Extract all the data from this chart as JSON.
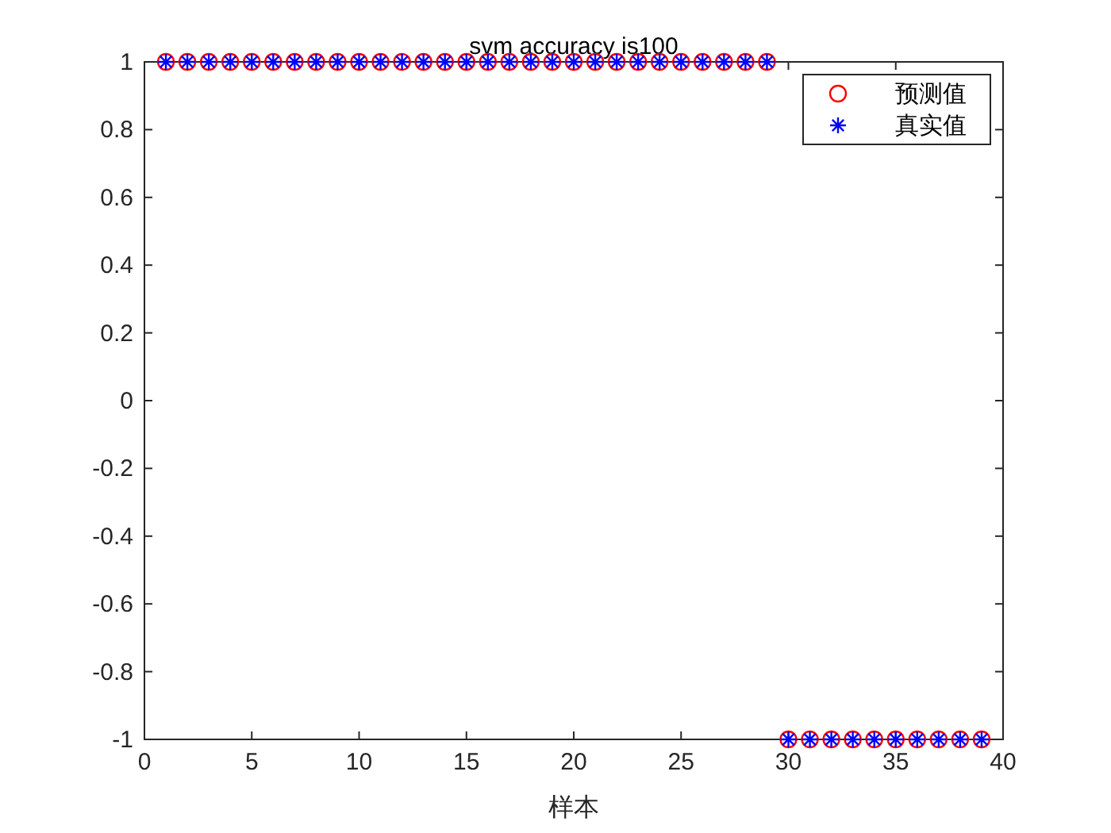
{
  "chart_data": {
    "type": "scatter",
    "title": "svm accuracy is100",
    "xlabel": "样本",
    "x": [
      1,
      2,
      3,
      4,
      5,
      6,
      7,
      8,
      9,
      10,
      11,
      12,
      13,
      14,
      15,
      16,
      17,
      18,
      19,
      20,
      21,
      22,
      23,
      24,
      25,
      26,
      27,
      28,
      29,
      30,
      31,
      32,
      33,
      34,
      35,
      36,
      37,
      38,
      39
    ],
    "series": [
      {
        "name": "预测值",
        "color": "#ff0000",
        "marker": "circle",
        "values": [
          1,
          1,
          1,
          1,
          1,
          1,
          1,
          1,
          1,
          1,
          1,
          1,
          1,
          1,
          1,
          1,
          1,
          1,
          1,
          1,
          1,
          1,
          1,
          1,
          1,
          1,
          1,
          1,
          1,
          -1,
          -1,
          -1,
          -1,
          -1,
          -1,
          -1,
          -1,
          -1,
          -1
        ]
      },
      {
        "name": "真实值",
        "color": "#0000ff",
        "marker": "cross",
        "values": [
          1,
          1,
          1,
          1,
          1,
          1,
          1,
          1,
          1,
          1,
          1,
          1,
          1,
          1,
          1,
          1,
          1,
          1,
          1,
          1,
          1,
          1,
          1,
          1,
          1,
          1,
          1,
          1,
          1,
          -1,
          -1,
          -1,
          -1,
          -1,
          -1,
          -1,
          -1,
          -1,
          -1
        ]
      }
    ],
    "xlim": [
      0,
      40
    ],
    "xticks": [
      0,
      5,
      10,
      15,
      20,
      25,
      30,
      35,
      40
    ],
    "ylim": [
      -1,
      1
    ],
    "yticks": [
      -1,
      -0.8,
      -0.6,
      -0.4,
      -0.2,
      0,
      0.2,
      0.4,
      0.6,
      0.8,
      1
    ],
    "grid": false,
    "legend": "top right"
  }
}
